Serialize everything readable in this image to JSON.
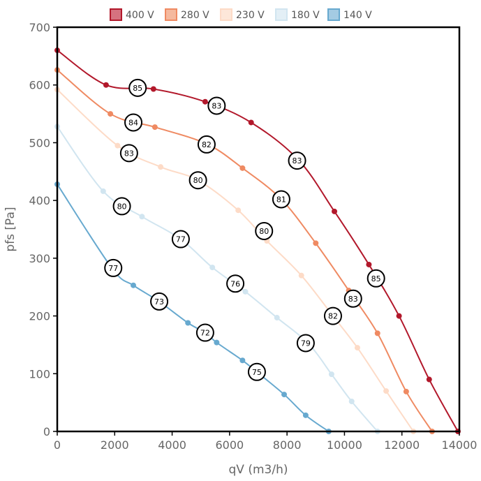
{
  "chart_data": {
    "type": "line",
    "title": "",
    "xlabel": "qV (m3/h)",
    "ylabel": "pfs [Pa]",
    "xlim": [
      0,
      14000
    ],
    "ylim": [
      0,
      700
    ],
    "x_ticks": [
      "0",
      "2000",
      "4000",
      "6000",
      "8000",
      "10000",
      "12000",
      "14000"
    ],
    "y_ticks": [
      "0",
      "100",
      "200",
      "300",
      "400",
      "500",
      "600",
      "700"
    ],
    "grid": false,
    "legend_position": "top",
    "series": [
      {
        "name": "400 V",
        "color": "#b2182b",
        "fill": "#d6727f",
        "points": [
          [
            0,
            660
          ],
          [
            1700,
            600
          ],
          [
            3350,
            593
          ],
          [
            5150,
            571
          ],
          [
            6750,
            535
          ],
          [
            8400,
            470
          ],
          [
            9650,
            381
          ],
          [
            10850,
            289
          ],
          [
            11900,
            200
          ],
          [
            12950,
            90
          ],
          [
            13950,
            0
          ]
        ]
      },
      {
        "name": "280 V",
        "color": "#ef8a62",
        "fill": "#f5b99e",
        "points": [
          [
            0,
            626
          ],
          [
            1850,
            550
          ],
          [
            3400,
            527
          ],
          [
            5200,
            498
          ],
          [
            6450,
            456
          ],
          [
            7800,
            402
          ],
          [
            9000,
            326
          ],
          [
            10150,
            244
          ],
          [
            11150,
            170
          ],
          [
            12150,
            69
          ],
          [
            13050,
            0
          ]
        ]
      },
      {
        "name": "230 V",
        "color": "#fddbc7",
        "fill": "#fde7d9",
        "points": [
          [
            0,
            592
          ],
          [
            2100,
            495
          ],
          [
            3600,
            458
          ],
          [
            4900,
            435
          ],
          [
            6300,
            383
          ],
          [
            7300,
            330
          ],
          [
            8500,
            270
          ],
          [
            9600,
            200
          ],
          [
            10450,
            145
          ],
          [
            11450,
            70
          ],
          [
            12400,
            0
          ]
        ]
      },
      {
        "name": "180 V",
        "color": "#d1e5f0",
        "fill": "#e3eff6",
        "points": [
          [
            0,
            528
          ],
          [
            1600,
            416
          ],
          [
            2950,
            372
          ],
          [
            4300,
            333
          ],
          [
            5400,
            284
          ],
          [
            6550,
            242
          ],
          [
            7650,
            197
          ],
          [
            8750,
            152
          ],
          [
            9550,
            99
          ],
          [
            10250,
            52
          ],
          [
            11150,
            0
          ]
        ]
      },
      {
        "name": "140 V",
        "color": "#67a9cf",
        "fill": "#a4cbe3",
        "points": [
          [
            0,
            428
          ],
          [
            1900,
            283
          ],
          [
            2650,
            253
          ],
          [
            3550,
            225
          ],
          [
            4550,
            188
          ],
          [
            5150,
            171
          ],
          [
            5550,
            154
          ],
          [
            6450,
            123
          ],
          [
            6950,
            103
          ],
          [
            7900,
            64
          ],
          [
            8650,
            28
          ],
          [
            9450,
            0
          ]
        ]
      }
    ],
    "annotations": [
      {
        "label": "85",
        "x": 2800,
        "y": 595
      },
      {
        "label": "83",
        "x": 5550,
        "y": 564
      },
      {
        "label": "83",
        "x": 8350,
        "y": 469
      },
      {
        "label": "85",
        "x": 11100,
        "y": 265
      },
      {
        "label": "84",
        "x": 2650,
        "y": 535
      },
      {
        "label": "82",
        "x": 5200,
        "y": 497
      },
      {
        "label": "81",
        "x": 7800,
        "y": 402
      },
      {
        "label": "83",
        "x": 10300,
        "y": 230
      },
      {
        "label": "83",
        "x": 2500,
        "y": 482
      },
      {
        "label": "80",
        "x": 4900,
        "y": 435
      },
      {
        "label": "80",
        "x": 7200,
        "y": 347
      },
      {
        "label": "82",
        "x": 9600,
        "y": 200
      },
      {
        "label": "80",
        "x": 2250,
        "y": 390
      },
      {
        "label": "77",
        "x": 4300,
        "y": 333
      },
      {
        "label": "76",
        "x": 6200,
        "y": 256
      },
      {
        "label": "79",
        "x": 8650,
        "y": 153
      },
      {
        "label": "77",
        "x": 1950,
        "y": 283
      },
      {
        "label": "73",
        "x": 3550,
        "y": 225
      },
      {
        "label": "72",
        "x": 5150,
        "y": 171
      },
      {
        "label": "75",
        "x": 6950,
        "y": 103
      }
    ]
  }
}
